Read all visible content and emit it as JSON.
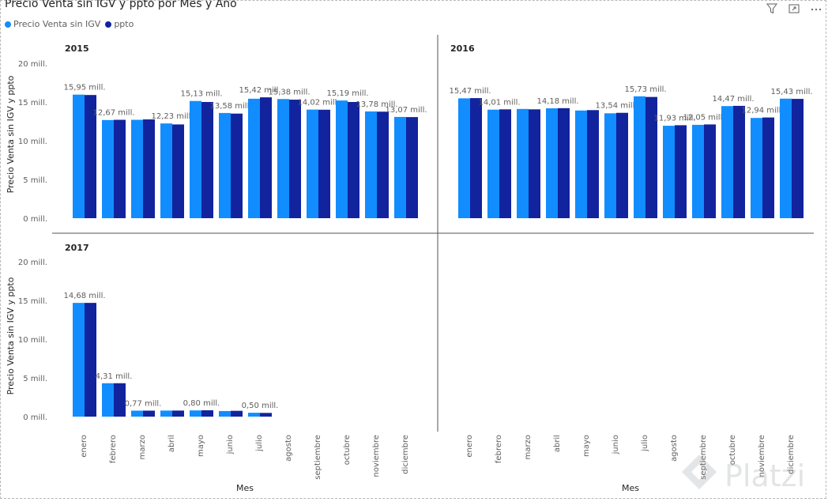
{
  "title": "Precio Venta sin IGV y ppto por Mes y Año",
  "legend": [
    {
      "label": "Precio Venta sin IGV",
      "color": "#118DFF"
    },
    {
      "label": "ppto",
      "color": "#12239E"
    }
  ],
  "icons": [
    "filter-icon",
    "focus-mode-icon",
    "more-options-icon"
  ],
  "watermark": "Platzi",
  "chart_data": {
    "type": "bar",
    "title": "Precio Venta sin IGV y ppto por Mes y Año",
    "xlabel": "Mes",
    "ylabel": "Precio Venta sin IGV y ppto",
    "ylim": [
      0,
      20
    ],
    "yticks": [
      "0 mill.",
      "5 mill.",
      "10 mill.",
      "15 mill.",
      "20 mill."
    ],
    "categories": [
      "enero",
      "febrero",
      "marzo",
      "abril",
      "mayo",
      "junio",
      "julio",
      "agosto",
      "septiembre",
      "octubre",
      "noviembre",
      "diciembre"
    ],
    "panels": [
      {
        "year": "2015",
        "series": [
          {
            "name": "Precio Venta sin IGV",
            "values": [
              15.95,
              12.67,
              12.7,
              12.23,
              15.13,
              13.58,
              15.42,
              15.38,
              14.02,
              15.19,
              13.78,
              13.07
            ]
          },
          {
            "name": "ppto",
            "values": [
              15.9,
              12.7,
              12.75,
              12.1,
              15.0,
              13.5,
              15.6,
              15.3,
              14.0,
              15.0,
              13.75,
              13.05
            ]
          }
        ],
        "labels": [
          "15,95 mill.",
          "12,67 mill.",
          "",
          "12,23 mill.",
          "15,13 mill.",
          "13,58 mill.",
          "15,42 mill.",
          "15,38 mill.",
          "14,02 mill.",
          "15,19 mill.",
          "13,78 mill.",
          "13,07 mill."
        ]
      },
      {
        "year": "2016",
        "series": [
          {
            "name": "Precio Venta sin IGV",
            "values": [
              15.47,
              14.01,
              14.1,
              14.18,
              13.9,
              13.54,
              15.73,
              11.93,
              12.05,
              14.47,
              12.94,
              15.43
            ]
          },
          {
            "name": "ppto",
            "values": [
              15.5,
              14.05,
              14.05,
              14.2,
              13.95,
              13.6,
              15.65,
              12.0,
              12.1,
              14.5,
              13.0,
              15.4
            ]
          }
        ],
        "labels": [
          "15,47 mill.",
          "14,01 mill.",
          "",
          "14,18 mill.",
          "",
          "13,54 mill.",
          "15,73 mill.",
          "11,93 mill.",
          "12,05 mill.",
          "14,47 mill.",
          "12,94 mill.",
          "15,43 mill."
        ]
      },
      {
        "year": "2017",
        "series": [
          {
            "name": "Precio Venta sin IGV",
            "values": [
              14.68,
              4.31,
              0.77,
              0.78,
              0.8,
              0.72,
              0.5,
              null,
              null,
              null,
              null,
              null
            ]
          },
          {
            "name": "ppto",
            "values": [
              14.68,
              4.31,
              0.77,
              0.78,
              0.82,
              0.75,
              0.48,
              null,
              null,
              null,
              null,
              null
            ]
          }
        ],
        "labels": [
          "14,68 mill.",
          "4,31 mill.",
          "0,77 mill.",
          "",
          "0,80 mill.",
          "",
          "0,50 mill.",
          "",
          "",
          "",
          "",
          ""
        ]
      }
    ]
  }
}
